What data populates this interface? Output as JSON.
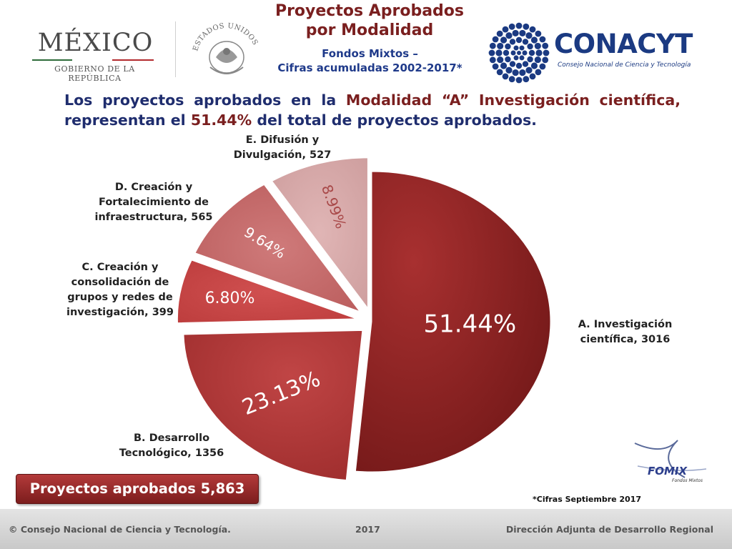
{
  "header": {
    "mexico": "MÉXICO",
    "gobierno": "GOBIERNO DE LA REPÚBLICA",
    "seal_text": "ESTADOS UNIDOS MEXICANOS",
    "title_line1": "Proyectos Aprobados",
    "title_line2": "por Modalidad",
    "subtitle_line1": "Fondos Mixtos –",
    "subtitle_line2": "Cifras acumuladas 2002-2017*",
    "conacyt": "CONACYT",
    "conacyt_sub": "Consejo Nacional de Ciencia y Tecnología"
  },
  "headline": {
    "part1": "Los proyectos aprobados en la ",
    "modalidad": "Modalidad “A” Investigación científica,",
    "part2": " representan el ",
    "pct": "51.44%",
    "part3": " del total de proyectos aprobados."
  },
  "chart_data": {
    "type": "pie",
    "slices": [
      {
        "name": "A. Investigación científica",
        "value": 3016,
        "percent": "51.44%",
        "color": "#8e2424"
      },
      {
        "name": "B. Desarrollo Tecnológico",
        "value": 1356,
        "percent": "23.13%",
        "color": "#b23535"
      },
      {
        "name": "C. Creación y consolidación de grupos y redes de investigación",
        "value": 399,
        "percent": "6.80%",
        "color": "#c94444"
      },
      {
        "name": "D. Creación y Fortalecimiento de infraestructura",
        "value": 565,
        "percent": "9.64%",
        "color": "#c56a6a"
      },
      {
        "name": "E. Difusión y Divulgación",
        "value": 527,
        "percent": "8.99%",
        "color": "#d9a6a6"
      }
    ],
    "labels": {
      "a1": "A. Investigación",
      "a2": "científica, 3016",
      "b1": "B. Desarrollo",
      "b2": "Tecnológico, 1356",
      "c1": "C. Creación y",
      "c2": "consolidación de",
      "c3": "grupos y redes de",
      "c4": "investigación, 399",
      "d1": "D. Creación y",
      "d2": "Fortalecimiento de",
      "d3": "infraestructura, 565",
      "e1": "E. Difusión y",
      "e2": "Divulgación, 527"
    }
  },
  "total": "Proyectos aprobados 5,863",
  "footnote": "*Cifras Septiembre 2017",
  "fomix": {
    "name": "FOMIX",
    "sub": "Fondos Mixtos"
  },
  "footer": {
    "left": "© Consejo Nacional de Ciencia y Tecnología.",
    "center": "2017",
    "right": "Dirección Adjunta de Desarrollo Regional"
  }
}
